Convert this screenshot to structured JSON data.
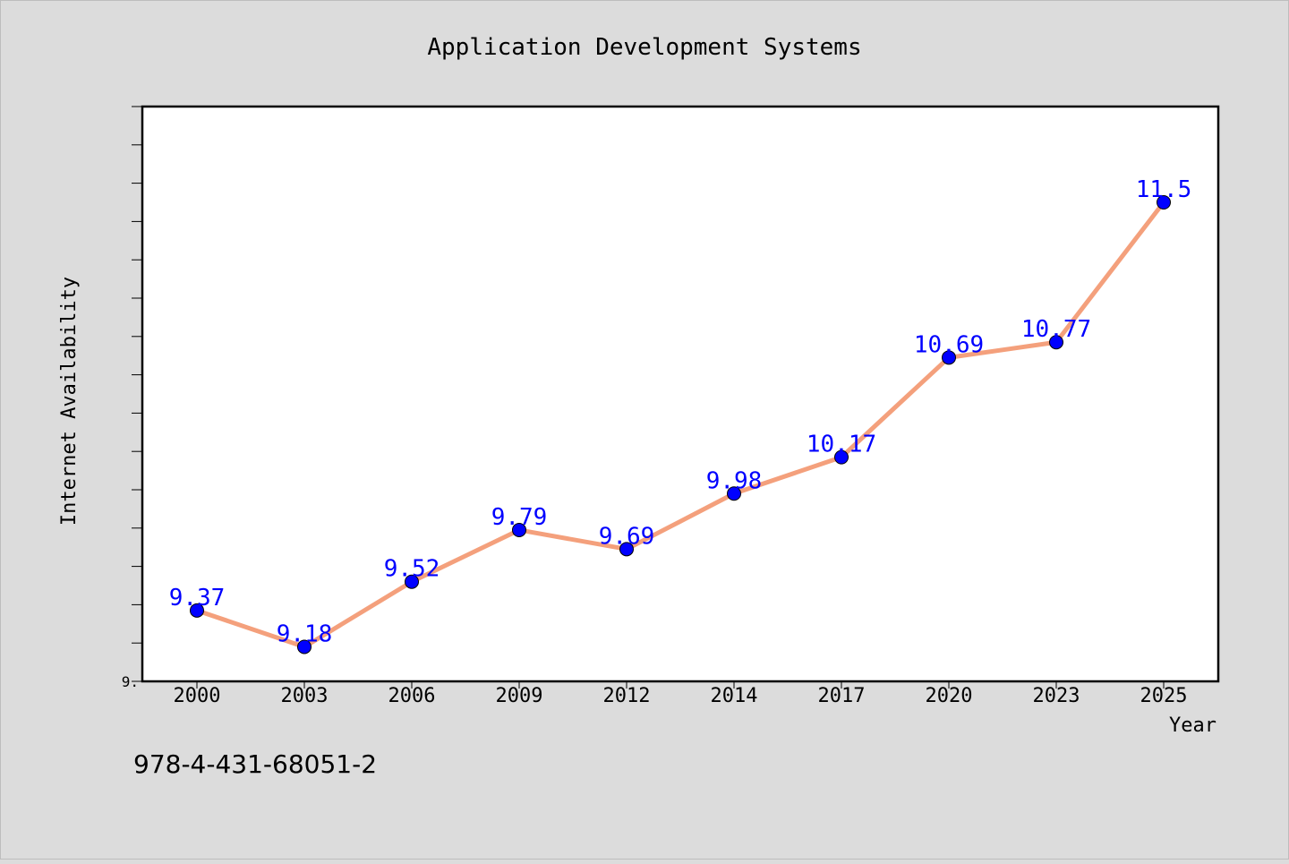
{
  "chart_data": {
    "type": "line",
    "title": "Application Development Systems",
    "xlabel": "Year",
    "ylabel": "Internet Availability",
    "x": [
      "2000",
      "2003",
      "2006",
      "2009",
      "2012",
      "2014",
      "2017",
      "2020",
      "2023",
      "2025"
    ],
    "series": [
      {
        "values": [
          9.37,
          9.18,
          9.52,
          9.79,
          9.69,
          9.98,
          10.17,
          10.69,
          10.77,
          11.5
        ]
      }
    ],
    "data_labels": [
      "9.37",
      "9.18",
      "9.52",
      "9.79",
      "9.69",
      "9.98",
      "10.17",
      "10.69",
      "10.77",
      "11.5"
    ],
    "ytick_labels": [
      "9."
    ],
    "ylim": [
      9.0,
      12.0
    ],
    "grid": false,
    "legend": "none"
  },
  "caption": "978-4-431-68051-2",
  "colors": {
    "background": "#dcdcdc",
    "plot_background": "#ffffff",
    "line": "#f4a07c",
    "marker": "#0000ff",
    "data_label": "#0000ff"
  }
}
